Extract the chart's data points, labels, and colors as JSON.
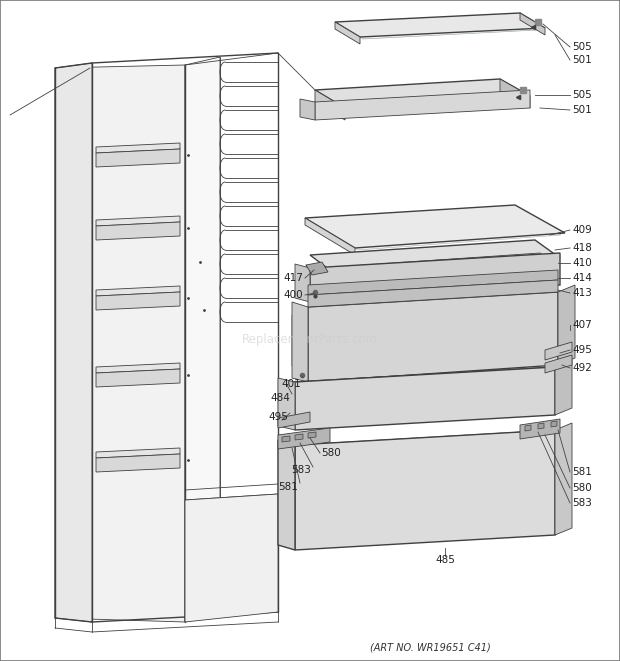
{
  "footer": "(ART NO. WR19651 C41)",
  "bg_color": "#ffffff",
  "line_color": "#404040",
  "fill_light": "#f0f0f0",
  "fill_mid": "#e0e0e0",
  "fill_dark": "#cccccc",
  "fill_darkest": "#b8b8b8",
  "watermark": "ReplacementParts.com",
  "label_fs": 7.5
}
